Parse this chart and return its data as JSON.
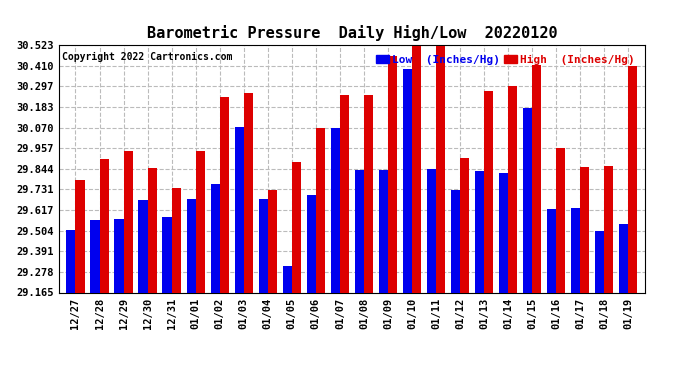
{
  "title": "Barometric Pressure  Daily High/Low  20220120",
  "copyright": "Copyright 2022 Cartronics.com",
  "legend_low_label": "Low  (Inches/Hg)",
  "legend_high_label": "High  (Inches/Hg)",
  "categories": [
    "12/27",
    "12/28",
    "12/29",
    "12/30",
    "12/31",
    "01/01",
    "01/02",
    "01/03",
    "01/04",
    "01/05",
    "01/06",
    "01/07",
    "01/08",
    "01/09",
    "01/10",
    "01/11",
    "01/12",
    "01/13",
    "01/14",
    "01/15",
    "01/16",
    "01/17",
    "01/18",
    "01/19"
  ],
  "low_values": [
    29.51,
    29.565,
    29.568,
    29.67,
    29.58,
    29.68,
    29.76,
    30.075,
    29.68,
    29.31,
    29.7,
    30.07,
    29.835,
    29.835,
    30.39,
    29.84,
    29.73,
    29.83,
    29.82,
    30.18,
    29.625,
    29.63,
    29.505,
    29.54
  ],
  "high_values": [
    29.78,
    29.9,
    29.94,
    29.85,
    29.74,
    29.94,
    30.24,
    30.26,
    29.73,
    29.88,
    30.07,
    30.25,
    30.25,
    30.46,
    30.515,
    30.515,
    29.905,
    30.27,
    30.3,
    30.415,
    29.96,
    29.855,
    29.86,
    30.41
  ],
  "ylim_min": 29.165,
  "ylim_max": 30.523,
  "yticks": [
    29.165,
    29.278,
    29.391,
    29.504,
    29.617,
    29.731,
    29.844,
    29.957,
    30.07,
    30.183,
    30.297,
    30.41,
    30.523
  ],
  "low_color": "#0000ee",
  "high_color": "#dd0000",
  "background_color": "#ffffff",
  "grid_color": "#bbbbbb",
  "title_fontsize": 11,
  "copyright_fontsize": 7,
  "legend_fontsize": 8,
  "tick_fontsize": 7.5,
  "bar_width": 0.38
}
